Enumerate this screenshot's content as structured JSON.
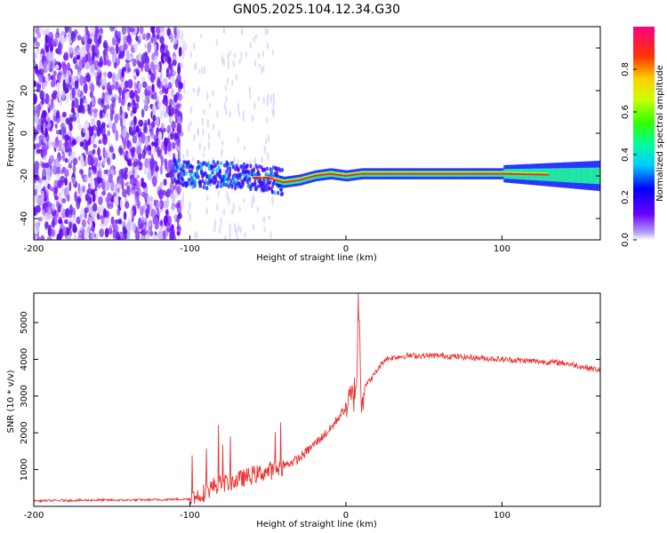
{
  "title": "GN05.2025.104.12.34.G30",
  "chart_data": [
    {
      "type": "heatmap",
      "xlabel": "Height of straight line (km)",
      "ylabel": "Frequency (Hz)",
      "xlim": [
        -200,
        163
      ],
      "ylim": [
        -50,
        50
      ],
      "xticks": [
        -200,
        -100,
        0,
        100
      ],
      "yticks": [
        -40,
        -20,
        0,
        20,
        40
      ],
      "colorbar": {
        "label": "Normalized spectral amplitude",
        "ticks": [
          "0.0",
          "0.2",
          "0.4",
          "0.6",
          "0.8"
        ],
        "tick_values": [
          0.0,
          0.2,
          0.4,
          0.6,
          0.8
        ],
        "range": [
          0,
          1
        ]
      },
      "signal_track": {
        "x": [
          -110,
          -100,
          -90,
          -80,
          -70,
          -60,
          -50,
          -45,
          -40,
          -30,
          -20,
          -10,
          0,
          10,
          50,
          100,
          163
        ],
        "frequency": [
          -18,
          -19,
          -20,
          -19,
          -20,
          -21,
          -21,
          -22,
          -23,
          -22,
          -20,
          -19,
          -20,
          -19,
          -19,
          -19,
          -20
        ]
      }
    },
    {
      "type": "line",
      "xlabel": "Height of straight line (km)",
      "ylabel": "SNR (10 * v/v)",
      "xlim": [
        -200,
        163
      ],
      "ylim": [
        0,
        5800
      ],
      "xticks": [
        -200,
        -100,
        0,
        100
      ],
      "yticks": [
        1000,
        2000,
        3000,
        4000,
        5000
      ],
      "line_color": "#ee3333",
      "series": [
        {
          "x": [
            -200,
            -180,
            -160,
            -140,
            -120,
            -100,
            -95,
            -90,
            -85,
            -80,
            -75,
            -70,
            -65,
            -60,
            -55,
            -50,
            -45,
            -40,
            -35,
            -30,
            -25,
            -20,
            -15,
            -10,
            -5,
            0,
            3,
            5,
            7,
            8,
            10,
            12,
            15,
            20,
            25,
            30,
            40,
            50,
            60,
            80,
            100,
            120,
            140,
            163
          ],
          "y": [
            150,
            160,
            170,
            170,
            180,
            200,
            280,
            400,
            550,
            620,
            650,
            700,
            780,
            850,
            900,
            950,
            1000,
            1100,
            1200,
            1300,
            1500,
            1700,
            1900,
            2100,
            2400,
            2700,
            2900,
            3000,
            3500,
            5700,
            2900,
            3300,
            3400,
            3700,
            4000,
            4050,
            4100,
            4100,
            4100,
            4050,
            4000,
            3950,
            3900,
            3700
          ]
        }
      ]
    }
  ]
}
